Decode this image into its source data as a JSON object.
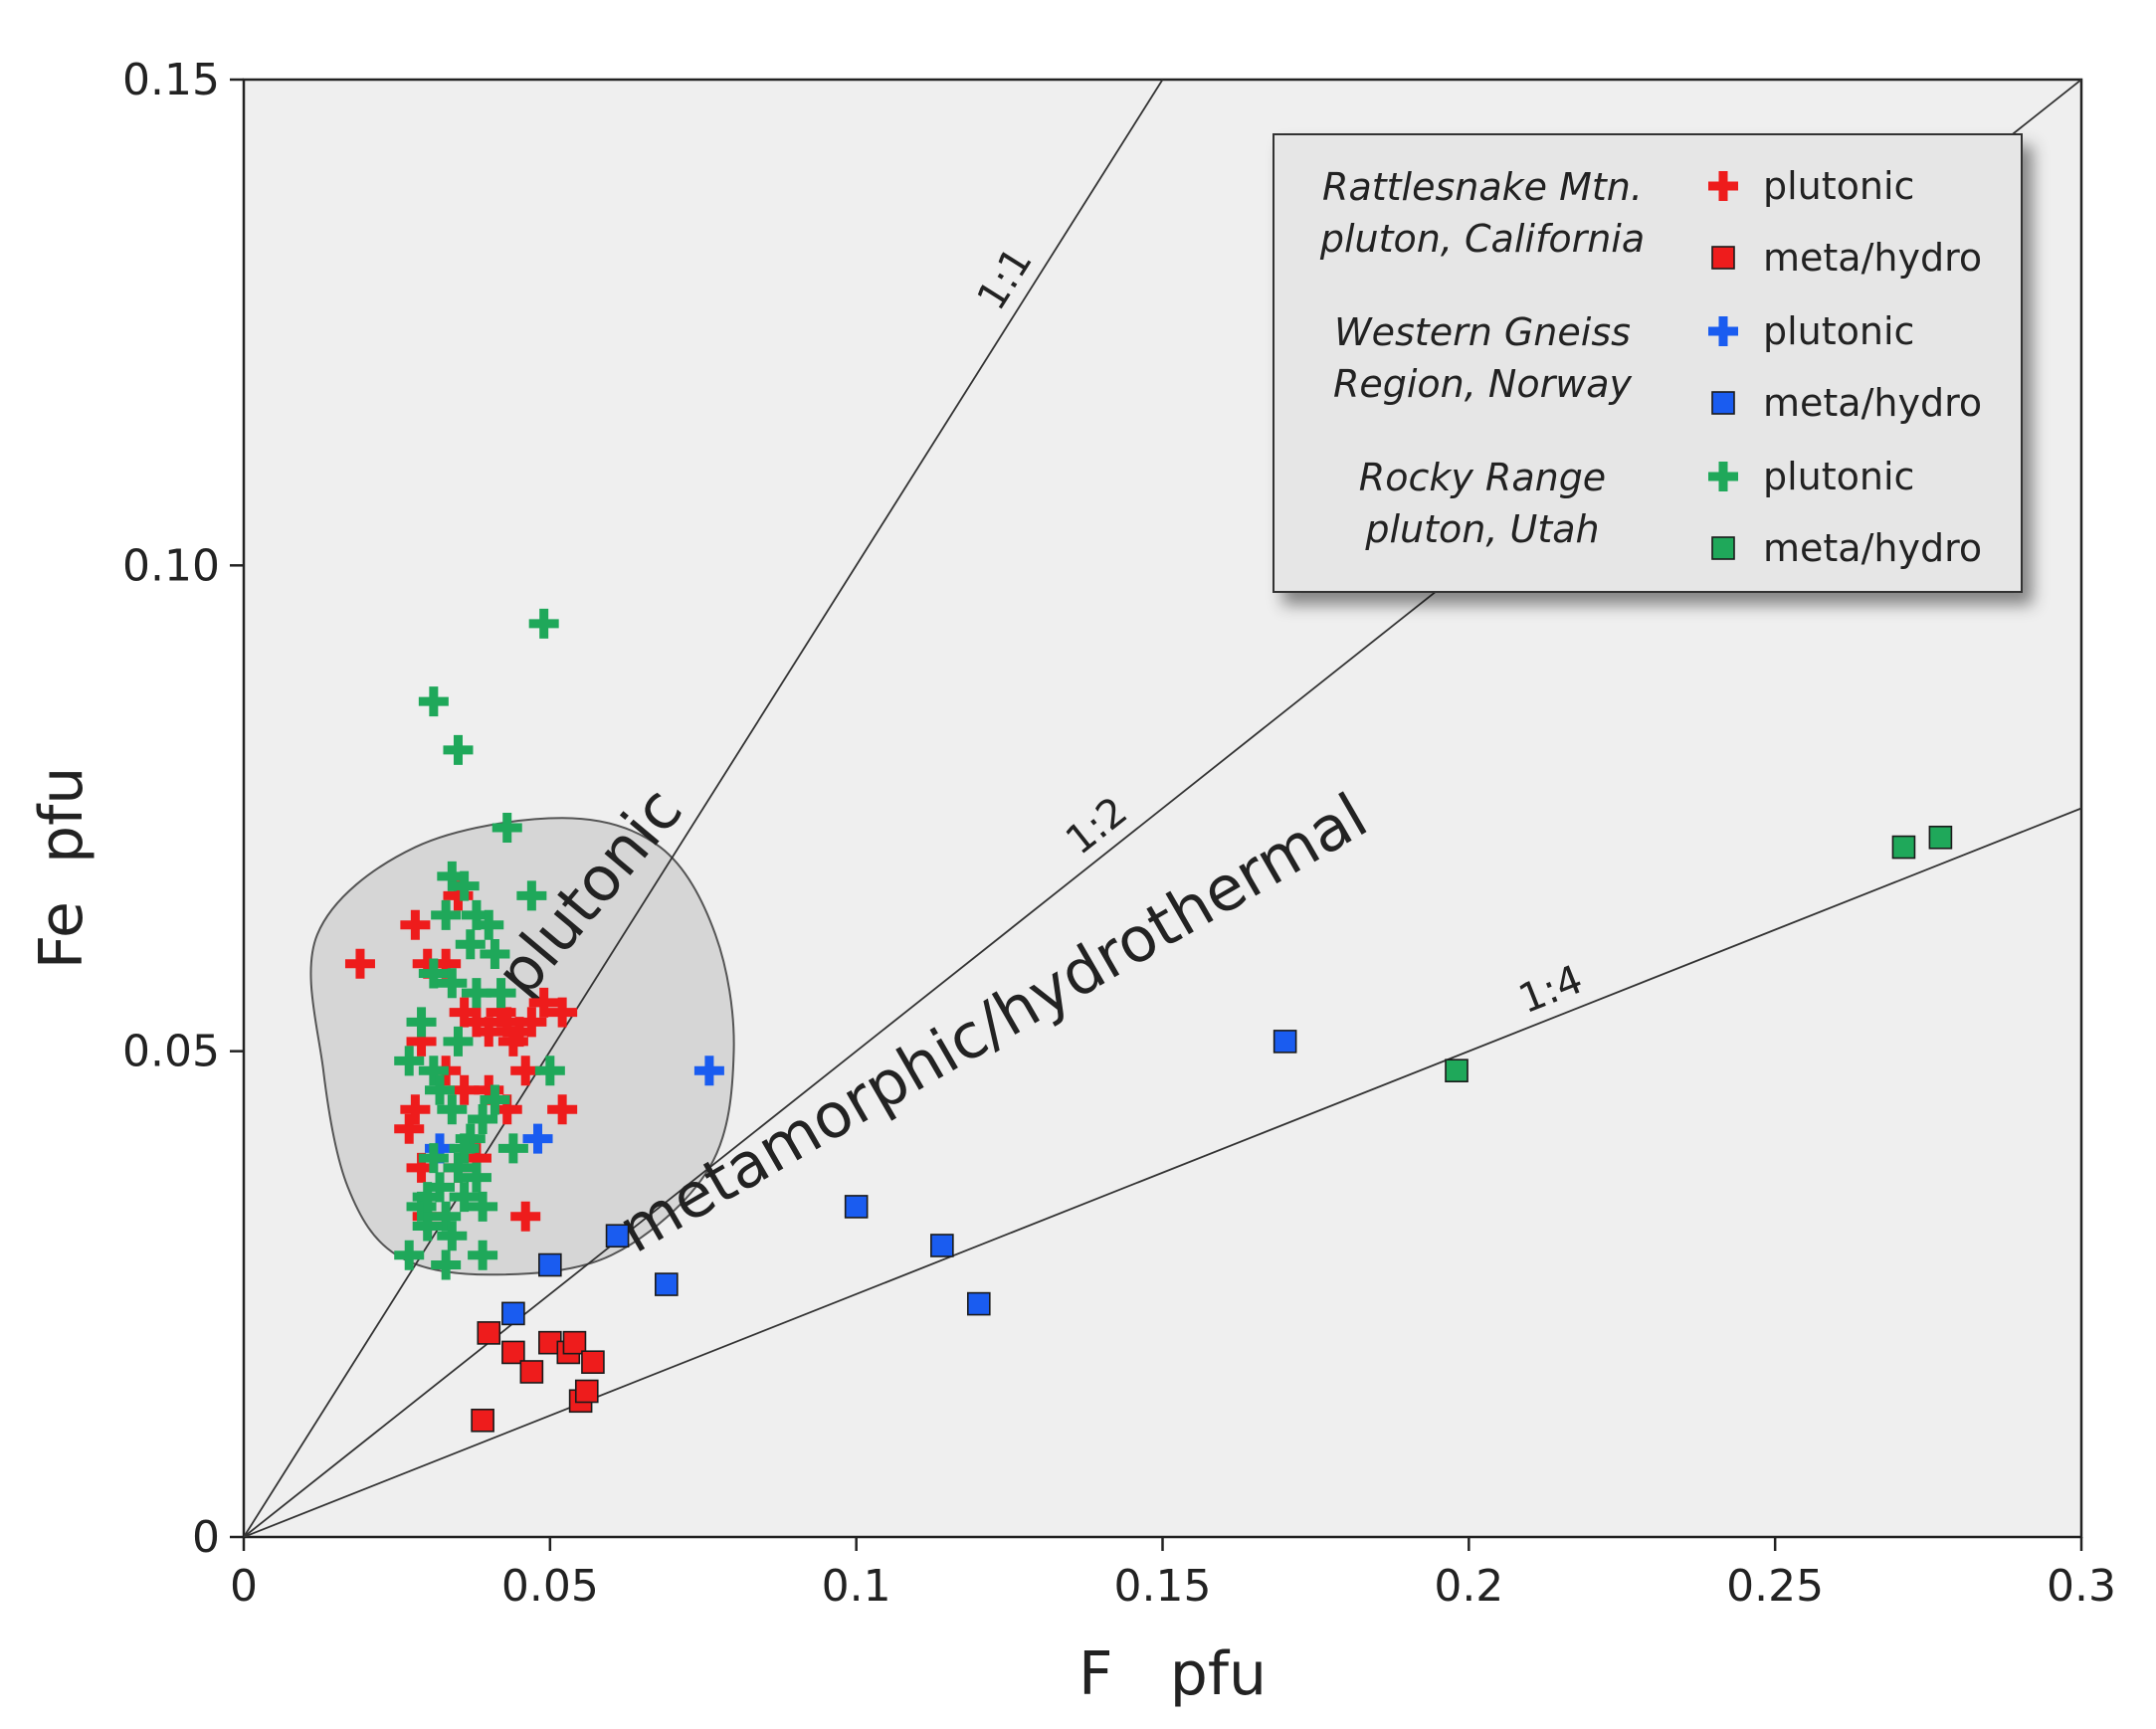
{
  "chart_data": {
    "type": "scatter",
    "title": "",
    "xlabel": "F   pfu",
    "ylabel": "Fe  pfu",
    "xlim": [
      0,
      0.3
    ],
    "ylim": [
      0,
      0.15
    ],
    "xticks": [
      0,
      0.05,
      0.1,
      0.15,
      0.2,
      0.25,
      0.3
    ],
    "xtick_labels": [
      "0",
      "0.05",
      "0.1",
      "0.15",
      "0.2",
      "0.25",
      "0.3"
    ],
    "yticks": [
      0,
      0.05,
      0.1,
      0.15
    ],
    "ytick_labels": [
      "0",
      "0.05",
      "0.10",
      "0.15"
    ],
    "colors": {
      "red": "#ee1c1c",
      "blue": "#1a5cf0",
      "green": "#1fa85a"
    },
    "ratio_lines": [
      {
        "label": "1:1",
        "slope": 1.0,
        "label_x": 0.128
      },
      {
        "label": "1:2",
        "slope": 0.5,
        "label_x": 0.142
      },
      {
        "label": "1:4",
        "slope": 0.25,
        "label_x": 0.215
      }
    ],
    "regions": [
      {
        "label": "plutonic",
        "type": "field"
      },
      {
        "label": "metamorphic/hydrothermal",
        "type": "text"
      }
    ],
    "plutonic_field_outline": [
      [
        0.012,
        0.062
      ],
      [
        0.028,
        0.071
      ],
      [
        0.052,
        0.074
      ],
      [
        0.068,
        0.071
      ],
      [
        0.077,
        0.062
      ],
      [
        0.08,
        0.05
      ],
      [
        0.076,
        0.038
      ],
      [
        0.06,
        0.029
      ],
      [
        0.04,
        0.027
      ],
      [
        0.025,
        0.029
      ],
      [
        0.017,
        0.036
      ],
      [
        0.013,
        0.048
      ]
    ],
    "legend": {
      "groups": [
        {
          "name_lines": [
            "Rattlesnake Mtn.",
            "pluton, California"
          ],
          "color": "red",
          "entries": [
            {
              "marker": "plus",
              "label": "plutonic"
            },
            {
              "marker": "square",
              "label": "meta/hydro"
            }
          ]
        },
        {
          "name_lines": [
            "Western Gneiss",
            "Region, Norway"
          ],
          "color": "blue",
          "entries": [
            {
              "marker": "plus",
              "label": "plutonic"
            },
            {
              "marker": "square",
              "label": "meta/hydro"
            }
          ]
        },
        {
          "name_lines": [
            "Rocky Range",
            "pluton, Utah"
          ],
          "color": "green",
          "entries": [
            {
              "marker": "plus",
              "label": "plutonic"
            },
            {
              "marker": "square",
              "label": "meta/hydro"
            }
          ]
        }
      ]
    },
    "series": [
      {
        "name": "Rattlesnake Mtn. pluton, California - plutonic",
        "color": "red",
        "marker": "plus",
        "points": [
          [
            0.019,
            0.059
          ],
          [
            0.028,
            0.063
          ],
          [
            0.03,
            0.059
          ],
          [
            0.033,
            0.059
          ],
          [
            0.035,
            0.066
          ],
          [
            0.036,
            0.054
          ],
          [
            0.038,
            0.053
          ],
          [
            0.04,
            0.052
          ],
          [
            0.042,
            0.054
          ],
          [
            0.043,
            0.053
          ],
          [
            0.044,
            0.051
          ],
          [
            0.045,
            0.052
          ],
          [
            0.047,
            0.053
          ],
          [
            0.049,
            0.055
          ],
          [
            0.052,
            0.054
          ],
          [
            0.046,
            0.048
          ],
          [
            0.029,
            0.051
          ],
          [
            0.028,
            0.044
          ],
          [
            0.027,
            0.042
          ],
          [
            0.029,
            0.038
          ],
          [
            0.036,
            0.046
          ],
          [
            0.04,
            0.046
          ],
          [
            0.043,
            0.044
          ],
          [
            0.052,
            0.044
          ],
          [
            0.035,
            0.038
          ],
          [
            0.038,
            0.039
          ],
          [
            0.046,
            0.033
          ],
          [
            0.03,
            0.033
          ],
          [
            0.033,
            0.048
          ]
        ]
      },
      {
        "name": "Rattlesnake Mtn. pluton, California - meta/hydro",
        "color": "red",
        "marker": "square",
        "points": [
          [
            0.039,
            0.012
          ],
          [
            0.04,
            0.021
          ],
          [
            0.044,
            0.019
          ],
          [
            0.047,
            0.017
          ],
          [
            0.05,
            0.02
          ],
          [
            0.053,
            0.019
          ],
          [
            0.054,
            0.02
          ],
          [
            0.055,
            0.014
          ],
          [
            0.056,
            0.015
          ],
          [
            0.057,
            0.018
          ]
        ]
      },
      {
        "name": "Western Gneiss Region, Norway - plutonic",
        "color": "blue",
        "marker": "plus",
        "points": [
          [
            0.032,
            0.04
          ],
          [
            0.048,
            0.041
          ],
          [
            0.076,
            0.048
          ]
        ]
      },
      {
        "name": "Western Gneiss Region, Norway - meta/hydro",
        "color": "blue",
        "marker": "square",
        "points": [
          [
            0.044,
            0.023
          ],
          [
            0.05,
            0.028
          ],
          [
            0.061,
            0.031
          ],
          [
            0.069,
            0.026
          ],
          [
            0.1,
            0.034
          ],
          [
            0.114,
            0.03
          ],
          [
            0.12,
            0.024
          ],
          [
            0.17,
            0.051
          ]
        ]
      },
      {
        "name": "Rocky Range pluton, Utah - plutonic",
        "color": "green",
        "marker": "plus",
        "points": [
          [
            0.049,
            0.094
          ],
          [
            0.031,
            0.086
          ],
          [
            0.035,
            0.081
          ],
          [
            0.043,
            0.073
          ],
          [
            0.047,
            0.066
          ],
          [
            0.034,
            0.068
          ],
          [
            0.036,
            0.067
          ],
          [
            0.038,
            0.064
          ],
          [
            0.033,
            0.064
          ],
          [
            0.04,
            0.063
          ],
          [
            0.037,
            0.061
          ],
          [
            0.041,
            0.06
          ],
          [
            0.031,
            0.058
          ],
          [
            0.034,
            0.057
          ],
          [
            0.038,
            0.056
          ],
          [
            0.042,
            0.056
          ],
          [
            0.029,
            0.053
          ],
          [
            0.035,
            0.051
          ],
          [
            0.027,
            0.049
          ],
          [
            0.031,
            0.048
          ],
          [
            0.05,
            0.048
          ],
          [
            0.032,
            0.046
          ],
          [
            0.041,
            0.045
          ],
          [
            0.034,
            0.044
          ],
          [
            0.039,
            0.043
          ],
          [
            0.037,
            0.041
          ],
          [
            0.044,
            0.04
          ],
          [
            0.031,
            0.039
          ],
          [
            0.035,
            0.038
          ],
          [
            0.038,
            0.037
          ],
          [
            0.032,
            0.036
          ],
          [
            0.036,
            0.035
          ],
          [
            0.029,
            0.034
          ],
          [
            0.033,
            0.033
          ],
          [
            0.039,
            0.034
          ],
          [
            0.03,
            0.032
          ],
          [
            0.034,
            0.031
          ],
          [
            0.027,
            0.029
          ],
          [
            0.033,
            0.028
          ],
          [
            0.039,
            0.029
          ],
          [
            0.036,
            0.04
          ],
          [
            0.03,
            0.035
          ]
        ]
      },
      {
        "name": "Rocky Range pluton, Utah - meta/hydro",
        "color": "green",
        "marker": "square",
        "points": [
          [
            0.198,
            0.048
          ],
          [
            0.271,
            0.071
          ],
          [
            0.277,
            0.072
          ]
        ]
      }
    ]
  }
}
